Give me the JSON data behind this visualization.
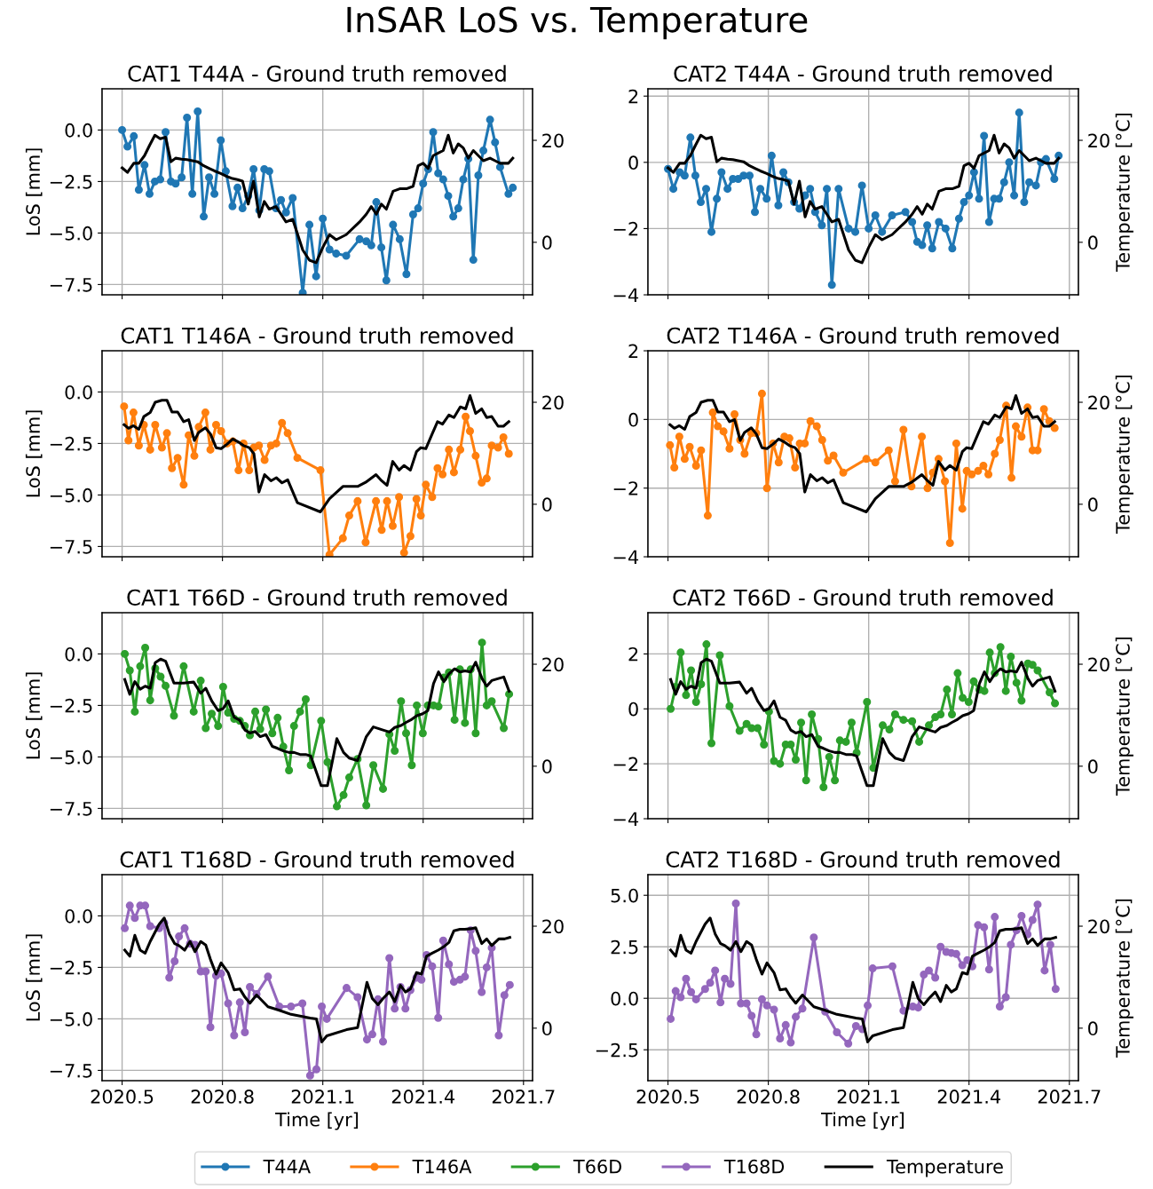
{
  "chart_data": [
    {
      "type": "line",
      "title": "CAT1 T44A - Ground truth removed",
      "annotations": [
        "InSAR LoS vs. Temperature"
      ],
      "ylabel": "LoS [mm]",
      "grid": true,
      "tick_labels": "y",
      "marker": "circle",
      "legend": "bottom",
      "xlim": [
        2020.44,
        2021.727
      ],
      "xticks": [
        2020.5,
        2020.8,
        2021.1,
        2021.4,
        2021.7
      ],
      "ylim": [
        -8.0,
        2.0
      ],
      "yticks": [
        {
          "value": -7.5,
          "label": "−7.5"
        },
        {
          "value": -5,
          "label": "−5.0"
        },
        {
          "value": -2.5,
          "label": "−2.5"
        },
        {
          "value": 0,
          "label": "0.0"
        }
      ],
      "y2lim": [
        -10.3,
        30.1
      ],
      "y2ticks": [
        0,
        20
      ],
      "x": [
        2020.5,
        2020.516,
        2020.535,
        2020.55,
        2020.567,
        2020.582,
        2020.598,
        2020.614,
        2020.63,
        2020.646,
        2020.66,
        2020.678,
        2020.694,
        2020.71,
        2020.726,
        2020.744,
        2020.76,
        2020.776,
        2020.795,
        2020.81,
        2020.83,
        2020.845,
        2020.86,
        2020.877,
        2020.893,
        2020.91,
        2020.925,
        2020.94,
        2020.96,
        2020.975,
        2020.99,
        2021.01,
        2021.04,
        2021.06,
        2021.08,
        2021.1,
        2021.12,
        2021.14,
        2021.17,
        2021.21,
        2021.23,
        2021.245,
        2021.26,
        2021.275,
        2021.29,
        2021.31,
        2021.33,
        2021.35,
        2021.37,
        2021.385,
        2021.4,
        2021.415,
        2021.43,
        2021.445,
        2021.46,
        2021.475,
        2021.49,
        2021.505,
        2021.52,
        2021.535,
        2021.55,
        2021.565,
        2021.58,
        2021.6,
        2021.615,
        2021.63,
        2021.655,
        2021.668
      ],
      "series": [
        {
          "name": "T44A",
          "color": "#1f77b4",
          "values": [
            0.0,
            -0.8,
            -0.3,
            -2.9,
            -1.7,
            -3.1,
            -2.5,
            -2.4,
            -0.1,
            -2.5,
            -2.6,
            -2.3,
            0.6,
            -3.1,
            0.9,
            -4.2,
            -2.3,
            -3.1,
            -0.5,
            -2.0,
            -3.7,
            -2.8,
            -3.8,
            -3.2,
            -1.9,
            -3.9,
            -1.9,
            -2.0,
            -3.8,
            -3.4,
            -4.0,
            -3.3,
            -7.9,
            -4.6,
            -7.1,
            -4.3,
            -5.8,
            -6.0,
            -6.1,
            -5.3,
            -5.4,
            -5.6,
            -3.5,
            -5.7,
            -7.3,
            -4.6,
            -5.3,
            -7.0,
            -4.1,
            -3.8,
            -2.6,
            -1.9,
            -0.1,
            -2.1,
            -2.4,
            -3.2,
            -4.2,
            -3.8,
            -2.4,
            -1.4,
            -6.3,
            -2.2,
            -1.0,
            0.5,
            -0.6,
            -1.8,
            -3.1,
            -2.8
          ]
        },
        {
          "name": "Temperature",
          "color": "#000000",
          "axis": "y2",
          "marker": "none",
          "values": [
            14.6,
            13.7,
            15.5,
            15.5,
            17,
            19,
            21,
            20.3,
            20.6,
            15.8,
            16.5,
            16.3,
            16.2,
            16,
            15.8,
            15,
            14.5,
            14,
            13.5,
            13,
            12.5,
            12.3,
            12,
            7.5,
            12,
            5,
            8,
            6.5,
            7,
            5.5,
            4,
            4.5,
            -1.5,
            -3.5,
            -4,
            -1,
            1.5,
            0.5,
            1.5,
            4,
            5.5,
            7,
            5.5,
            7.5,
            6.5,
            10,
            10.5,
            10.5,
            11,
            15,
            15.5,
            14.5,
            17,
            17.5,
            18,
            21,
            17.5,
            19.3,
            18.5,
            16.5,
            18,
            17,
            16,
            16.5,
            16,
            15.5,
            15.5,
            16.5
          ]
        }
      ]
    },
    {
      "type": "line",
      "title": "CAT2 T44A - Ground truth removed",
      "y2label": "Temperature [°C]",
      "grid": true,
      "tick_labels": "y",
      "marker": "circle",
      "xlim": [
        2020.44,
        2021.727
      ],
      "xticks": [
        2020.5,
        2020.8,
        2021.1,
        2021.4,
        2021.7
      ],
      "ylim": [
        -4.0,
        2.22
      ],
      "yticks": [
        -4,
        -2,
        0,
        2
      ],
      "y2lim": [
        -10.3,
        30.1
      ],
      "y2ticks": [
        0,
        20
      ],
      "x": [
        2020.5,
        2020.516,
        2020.535,
        2020.55,
        2020.567,
        2020.582,
        2020.598,
        2020.614,
        2020.63,
        2020.646,
        2020.66,
        2020.678,
        2020.694,
        2020.71,
        2020.726,
        2020.744,
        2020.76,
        2020.776,
        2020.795,
        2020.81,
        2020.83,
        2020.845,
        2020.86,
        2020.877,
        2020.893,
        2020.91,
        2020.925,
        2020.94,
        2020.96,
        2020.975,
        2020.99,
        2021.01,
        2021.04,
        2021.06,
        2021.08,
        2021.1,
        2021.12,
        2021.14,
        2021.17,
        2021.21,
        2021.23,
        2021.245,
        2021.26,
        2021.275,
        2021.29,
        2021.31,
        2021.33,
        2021.35,
        2021.37,
        2021.385,
        2021.4,
        2021.415,
        2021.43,
        2021.445,
        2021.46,
        2021.475,
        2021.49,
        2021.505,
        2021.52,
        2021.535,
        2021.55,
        2021.565,
        2021.58,
        2021.6,
        2021.615,
        2021.63,
        2021.655,
        2021.668
      ],
      "series": [
        {
          "name": "T44A",
          "color": "#1f77b4",
          "values": [
            -0.2,
            -0.8,
            -0.3,
            -0.4,
            0.75,
            -0.4,
            -1.2,
            -0.8,
            -2.1,
            -1.1,
            -0.3,
            -0.8,
            -0.5,
            -0.5,
            -0.4,
            -0.4,
            -1.5,
            -0.8,
            -1.1,
            0.2,
            -1.3,
            -0.3,
            -0.6,
            -1.2,
            -1.4,
            -1.0,
            -0.8,
            -1.5,
            -1.9,
            -0.8,
            -3.7,
            -0.8,
            -2.0,
            -2.1,
            -0.7,
            -2.0,
            -1.6,
            -2.1,
            -1.6,
            -1.5,
            -1.8,
            -2.4,
            -2.5,
            -1.9,
            -2.6,
            -1.8,
            -2.0,
            -2.6,
            -1.7,
            -1.2,
            -1.0,
            -0.3,
            -1.1,
            0.8,
            -1.8,
            -1.1,
            -1.1,
            -0.6,
            0.0,
            -1.0,
            1.5,
            -1.2,
            -0.6,
            -0.7,
            0.0,
            0.1,
            -0.5,
            0.2
          ]
        },
        {
          "name": "Temperature",
          "color": "#000000",
          "axis": "y2",
          "marker": "none",
          "values": [
            14.6,
            13.7,
            15.5,
            15.5,
            17,
            19,
            21,
            20.3,
            20.6,
            15.8,
            16.5,
            16.3,
            16.2,
            16,
            15.8,
            15,
            14.5,
            14,
            13.5,
            13,
            12.5,
            12.3,
            12,
            7.5,
            12,
            5,
            8,
            6.5,
            7,
            5.5,
            4,
            4.5,
            -1.5,
            -3.5,
            -4,
            -1,
            1.5,
            0.5,
            1.5,
            4,
            5.5,
            7,
            5.5,
            7.5,
            6.5,
            10,
            10.5,
            10.5,
            11,
            15,
            15.5,
            14.5,
            17,
            17.5,
            18,
            21,
            17.5,
            19.3,
            18.5,
            16.5,
            18,
            17,
            16,
            16.5,
            16,
            15.5,
            15.5,
            16.5
          ]
        }
      ]
    },
    {
      "type": "line",
      "title": "CAT1 T146A - Ground truth removed",
      "ylabel": "LoS [mm]",
      "grid": true,
      "tick_labels": "y",
      "marker": "circle",
      "xlim": [
        2020.44,
        2021.727
      ],
      "xticks": [
        2020.5,
        2020.8,
        2021.1,
        2021.4,
        2021.7
      ],
      "ylim": [
        -8.0,
        2.0
      ],
      "yticks": [
        {
          "value": -7.5,
          "label": "−7.5"
        },
        {
          "value": -5,
          "label": "−5.0"
        },
        {
          "value": -2.5,
          "label": "−2.5"
        },
        {
          "value": 0,
          "label": "0.0"
        }
      ],
      "y2lim": [
        -10.3,
        30.1
      ],
      "y2ticks": [
        0,
        20
      ],
      "x": [
        2020.506,
        2020.519,
        2020.534,
        2020.55,
        2020.565,
        2020.584,
        2020.599,
        2020.619,
        2020.634,
        2020.649,
        2020.666,
        2020.684,
        2020.699,
        2020.716,
        2020.729,
        2020.749,
        2020.764,
        2020.781,
        2020.796,
        2020.814,
        2020.831,
        2020.848,
        2020.863,
        2020.88,
        2020.894,
        2020.909,
        2020.926,
        2020.945,
        2020.961,
        2020.978,
        2020.995,
        2021.024,
        2021.093,
        2021.12,
        2021.16,
        2021.179,
        2021.204,
        2021.228,
        2021.259,
        2021.276,
        2021.292,
        2021.309,
        2021.328,
        2021.343,
        2021.362,
        2021.38,
        2021.393,
        2021.408,
        2021.427,
        2021.443,
        2021.458,
        2021.477,
        2021.492,
        2021.511,
        2021.527,
        2021.54,
        2021.557,
        2021.575,
        2021.59,
        2021.605,
        2021.624,
        2021.64,
        2021.656
      ],
      "series": [
        {
          "name": "T146A",
          "color": "#ff7f0e",
          "values": [
            -0.7,
            -2.35,
            -1.0,
            -2.6,
            -1.6,
            -2.8,
            -1.6,
            -2.7,
            -2.0,
            -3.7,
            -3.2,
            -4.5,
            -2.1,
            -3.1,
            -1.7,
            -1.0,
            -2.8,
            -1.6,
            -1.9,
            -2.5,
            -2.4,
            -3.8,
            -2.5,
            -3.8,
            -2.7,
            -2.6,
            -3.3,
            -2.6,
            -2.5,
            -1.5,
            -2.0,
            -3.2,
            -3.8,
            -7.9,
            -7.1,
            -6.0,
            -5.3,
            -7.3,
            -5.3,
            -6.7,
            -5.3,
            -6.5,
            -5.1,
            -7.8,
            -7.0,
            -5.2,
            -6.0,
            -4.5,
            -5.1,
            -3.7,
            -4.0,
            -2.8,
            -3.9,
            -2.8,
            -1.2,
            -1.9,
            -3.1,
            -4.4,
            -4.2,
            -2.6,
            -2.7,
            -2.2,
            -3.0
          ]
        },
        {
          "name": "Temperature",
          "color": "#000000",
          "axis": "y2",
          "marker": "none",
          "values": [
            15.6,
            14.9,
            15.4,
            14.7,
            17.2,
            18,
            20,
            20.4,
            20.4,
            18.1,
            18.1,
            16.2,
            16.6,
            12.5,
            14.1,
            15,
            13.8,
            11.1,
            10.9,
            11.8,
            12.8,
            12.2,
            11.5,
            11.1,
            9.9,
            2.4,
            5.8,
            4.6,
            5.2,
            4.2,
            4.8,
            0.3,
            -1.5,
            1.1,
            3.5,
            3.5,
            3.5,
            4.3,
            5.8,
            4.6,
            3.7,
            8.4,
            6.7,
            7.6,
            6.7,
            10.3,
            11.1,
            10.9,
            13.8,
            16.2,
            15.7,
            17.5,
            17,
            19.1,
            18.7,
            21.3,
            17.8,
            18.7,
            17,
            17.2,
            15.3,
            15.3,
            16.2
          ]
        }
      ]
    },
    {
      "type": "line",
      "title": "CAT2 T146A - Ground truth removed",
      "y2label": "Temperature [°C]",
      "grid": true,
      "tick_labels": "y",
      "marker": "circle",
      "xlim": [
        2020.44,
        2021.727
      ],
      "xticks": [
        2020.5,
        2020.8,
        2021.1,
        2021.4,
        2021.7
      ],
      "ylim": [
        -4.0,
        2.0
      ],
      "yticks": [
        -4,
        -2,
        0,
        2
      ],
      "y2lim": [
        -10.3,
        30.1
      ],
      "y2ticks": [
        0,
        20
      ],
      "x": [
        2020.506,
        2020.519,
        2020.534,
        2020.55,
        2020.565,
        2020.584,
        2020.599,
        2020.619,
        2020.634,
        2020.649,
        2020.666,
        2020.684,
        2020.699,
        2020.716,
        2020.729,
        2020.749,
        2020.764,
        2020.781,
        2020.796,
        2020.814,
        2020.831,
        2020.848,
        2020.863,
        2020.88,
        2020.894,
        2020.909,
        2020.926,
        2020.945,
        2020.961,
        2020.978,
        2020.995,
        2021.024,
        2021.093,
        2021.12,
        2021.16,
        2021.179,
        2021.204,
        2021.228,
        2021.259,
        2021.276,
        2021.292,
        2021.309,
        2021.328,
        2021.343,
        2021.362,
        2021.38,
        2021.393,
        2021.408,
        2021.427,
        2021.443,
        2021.458,
        2021.477,
        2021.492,
        2021.511,
        2021.527,
        2021.54,
        2021.557,
        2021.575,
        2021.59,
        2021.605,
        2021.624,
        2021.64,
        2021.656
      ],
      "series": [
        {
          "name": "T146A",
          "color": "#ff7f0e",
          "values": [
            -0.75,
            -1.4,
            -0.5,
            -1.15,
            -0.8,
            -1.35,
            -0.9,
            -2.8,
            0.2,
            -0.2,
            -0.35,
            -0.85,
            0.15,
            -0.6,
            -1.0,
            -0.4,
            -0.4,
            0.75,
            -2.0,
            -0.7,
            -1.25,
            -0.5,
            -0.55,
            -1.4,
            -0.7,
            -0.7,
            -0.05,
            -0.2,
            -0.6,
            -1.2,
            -1.05,
            -1.55,
            -1.15,
            -1.25,
            -0.9,
            -1.8,
            -0.3,
            -1.95,
            -0.5,
            -2.0,
            -1.55,
            -1.15,
            -1.8,
            -3.6,
            -0.7,
            -2.6,
            -1.5,
            -1.6,
            -1.5,
            -1.35,
            -1.6,
            -1.0,
            -0.6,
            0.4,
            -1.7,
            -0.2,
            -0.5,
            0.35,
            -0.9,
            -0.9,
            0.3,
            -0.05,
            -0.25
          ]
        },
        {
          "name": "Temperature",
          "color": "#000000",
          "axis": "y2",
          "marker": "none",
          "values": [
            15.6,
            14.9,
            15.4,
            14.7,
            17.2,
            18,
            20,
            20.4,
            20.4,
            18.1,
            18.1,
            16.2,
            16.6,
            12.5,
            14.1,
            15,
            13.8,
            11.1,
            10.9,
            11.8,
            12.8,
            12.2,
            11.5,
            11.1,
            9.9,
            2.4,
            5.8,
            4.6,
            5.2,
            4.2,
            4.8,
            0.3,
            -1.5,
            1.1,
            3.5,
            3.5,
            3.5,
            4.3,
            5.8,
            4.6,
            3.7,
            8.4,
            6.7,
            7.6,
            6.7,
            10.3,
            11.1,
            10.9,
            13.8,
            16.2,
            15.7,
            17.5,
            17,
            19.1,
            18.7,
            21.3,
            17.8,
            18.7,
            17,
            17.2,
            15.3,
            15.3,
            16.2
          ]
        }
      ]
    },
    {
      "type": "line",
      "title": "CAT1 T66D - Ground truth removed",
      "ylabel": "LoS [mm]",
      "grid": true,
      "tick_labels": "y",
      "marker": "circle",
      "xlim": [
        2020.44,
        2021.727
      ],
      "xticks": [
        2020.5,
        2020.8,
        2021.1,
        2021.4,
        2021.7
      ],
      "ylim": [
        -8.0,
        2.0
      ],
      "yticks": [
        {
          "value": -7.5,
          "label": "−7.5"
        },
        {
          "value": -5,
          "label": "−5.0"
        },
        {
          "value": -2.5,
          "label": "−2.5"
        },
        {
          "value": 0,
          "label": "0.0"
        }
      ],
      "y2lim": [
        -10.3,
        30.1
      ],
      "y2ticks": [
        0,
        20
      ],
      "x": [
        2020.508,
        2020.523,
        2020.538,
        2020.554,
        2020.569,
        2020.584,
        2020.599,
        2020.615,
        2020.63,
        2020.655,
        2020.684,
        2020.714,
        2020.735,
        2020.75,
        2020.768,
        2020.787,
        2020.802,
        2020.817,
        2020.835,
        2020.852,
        2020.867,
        2020.882,
        2020.898,
        2020.913,
        2020.93,
        2020.949,
        2020.965,
        2020.982,
        2020.999,
        2021.014,
        2021.032,
        2021.049,
        2021.064,
        2021.095,
        2021.114,
        2021.142,
        2021.162,
        2021.179,
        2021.204,
        2021.23,
        2021.251,
        2021.28,
        2021.299,
        2021.315,
        2021.334,
        2021.349,
        2021.366,
        2021.381,
        2021.399,
        2021.414,
        2021.431,
        2021.446,
        2021.462,
        2021.477,
        2021.494,
        2021.51,
        2021.525,
        2021.542,
        2021.557,
        2021.576,
        2021.59,
        2021.605,
        2021.641,
        2021.657
      ],
      "series": [
        {
          "name": "T66D",
          "color": "#2ca02c",
          "values": [
            0.0,
            -0.8,
            -2.8,
            -0.6,
            0.3,
            -2.25,
            -0.7,
            -1.1,
            -1.55,
            -3.0,
            -0.6,
            -2.8,
            -1.3,
            -3.6,
            -2.9,
            -3.5,
            -1.6,
            -2.85,
            -3.15,
            -3.25,
            -3.5,
            -3.95,
            -2.8,
            -3.65,
            -2.7,
            -3.85,
            -3.1,
            -4.5,
            -5.65,
            -3.5,
            -2.8,
            -2.2,
            -5.4,
            -3.25,
            -5.25,
            -7.4,
            -6.85,
            -6.0,
            -5.1,
            -7.35,
            -5.4,
            -6.55,
            -3.9,
            -4.7,
            -2.3,
            -3.85,
            -5.4,
            -2.5,
            -3.85,
            -2.5,
            -2.5,
            -2.55,
            -1.15,
            -0.9,
            -3.2,
            -0.75,
            -3.35,
            -0.75,
            -3.85,
            0.55,
            -2.5,
            -2.3,
            -3.6,
            -1.95
          ]
        },
        {
          "name": "Temperature",
          "color": "#000000",
          "axis": "y2",
          "marker": "none",
          "values": [
            17,
            14.1,
            16.6,
            15.1,
            15.7,
            15.3,
            20.3,
            21,
            20.6,
            16.3,
            16.3,
            16.5,
            14.3,
            15.3,
            12.8,
            10.9,
            11.3,
            12.8,
            9.6,
            9,
            7.1,
            6.5,
            6.8,
            5.8,
            6.2,
            3.9,
            3.5,
            3.0,
            2.7,
            2.7,
            2.3,
            2.3,
            2.0,
            -3.8,
            -3.8,
            5.4,
            2.7,
            1.6,
            1.1,
            5.8,
            7.7,
            7.1,
            6.7,
            7.6,
            8,
            8.6,
            9.2,
            9.9,
            10.3,
            10.9,
            16.2,
            18.5,
            16.6,
            18.1,
            19.1,
            18.5,
            18.7,
            18.5,
            20.4,
            17.2,
            15.7,
            16.8,
            17.5,
            14.7
          ]
        }
      ]
    },
    {
      "type": "line",
      "title": "CAT2 T66D - Ground truth removed",
      "y2label": "Temperature [°C]",
      "grid": true,
      "tick_labels": "y",
      "marker": "circle",
      "xlim": [
        2020.44,
        2021.727
      ],
      "xticks": [
        2020.5,
        2020.8,
        2021.1,
        2021.4,
        2021.7
      ],
      "ylim": [
        -4.0,
        3.5
      ],
      "yticks": [
        -4,
        -2,
        0,
        2
      ],
      "y2lim": [
        -10.3,
        30.1
      ],
      "y2ticks": [
        0,
        20
      ],
      "x": [
        2020.508,
        2020.523,
        2020.538,
        2020.554,
        2020.569,
        2020.584,
        2020.599,
        2020.615,
        2020.63,
        2020.655,
        2020.684,
        2020.714,
        2020.735,
        2020.75,
        2020.768,
        2020.787,
        2020.802,
        2020.817,
        2020.835,
        2020.852,
        2020.867,
        2020.882,
        2020.898,
        2020.913,
        2020.93,
        2020.949,
        2020.965,
        2020.982,
        2020.999,
        2021.014,
        2021.032,
        2021.049,
        2021.064,
        2021.095,
        2021.114,
        2021.142,
        2021.162,
        2021.179,
        2021.204,
        2021.23,
        2021.251,
        2021.28,
        2021.299,
        2021.315,
        2021.334,
        2021.349,
        2021.366,
        2021.381,
        2021.399,
        2021.414,
        2021.431,
        2021.446,
        2021.462,
        2021.477,
        2021.494,
        2021.51,
        2021.525,
        2021.542,
        2021.557,
        2021.576,
        2021.59,
        2021.605,
        2021.641,
        2021.657
      ],
      "series": [
        {
          "name": "T66D",
          "color": "#2ca02c",
          "values": [
            0.0,
            0.8,
            2.05,
            0.5,
            1.4,
            0.25,
            0.9,
            2.35,
            -1.25,
            1.95,
            0.1,
            -0.8,
            -0.55,
            -0.7,
            -0.7,
            -1.3,
            -0.1,
            -1.9,
            -2.0,
            -1.3,
            -1.3,
            -1.85,
            -0.5,
            -2.6,
            -0.2,
            -1.1,
            -2.85,
            -1.75,
            -2.6,
            -1.15,
            -1.2,
            -0.5,
            -1.6,
            0.25,
            -2.15,
            -0.6,
            -0.75,
            -0.2,
            -0.4,
            -0.45,
            -1.2,
            -0.6,
            -0.3,
            -0.2,
            0.7,
            -0.2,
            1.3,
            0.4,
            0.25,
            1.0,
            0.7,
            0.65,
            2.05,
            1.3,
            2.25,
            0.65,
            1.9,
            0.95,
            0.3,
            1.65,
            1.6,
            1.4,
            0.6,
            0.2
          ]
        },
        {
          "name": "Temperature",
          "color": "#000000",
          "axis": "y2",
          "marker": "none",
          "values": [
            17,
            14.1,
            16.6,
            15.1,
            15.7,
            15.3,
            20.3,
            21,
            20.6,
            16.3,
            16.3,
            16.5,
            14.3,
            15.3,
            12.8,
            10.9,
            11.3,
            12.8,
            9.6,
            9,
            7.1,
            6.5,
            6.8,
            5.8,
            6.2,
            3.9,
            3.5,
            3.0,
            2.7,
            2.7,
            2.3,
            2.3,
            2.0,
            -3.8,
            -3.8,
            5.4,
            2.7,
            1.6,
            1.1,
            5.8,
            7.7,
            7.1,
            6.7,
            7.6,
            8,
            8.6,
            9.2,
            9.9,
            10.3,
            10.9,
            16.2,
            18.5,
            16.6,
            18.1,
            19.1,
            18.5,
            18.7,
            18.5,
            20.4,
            17.2,
            15.7,
            16.8,
            17.5,
            14.7
          ]
        }
      ]
    },
    {
      "type": "line",
      "title": "CAT1 T168D - Ground truth removed",
      "ylabel": "LoS [mm]",
      "xlabel": "Time [yr]",
      "grid": true,
      "marker": "circle",
      "xlim": [
        2020.44,
        2021.727
      ],
      "xticks": [
        2020.5,
        2020.8,
        2021.1,
        2021.4,
        2021.7
      ],
      "ylim": [
        -8.0,
        2.0
      ],
      "yticks": [
        {
          "value": -7.5,
          "label": "−7.5"
        },
        {
          "value": -5,
          "label": "−5.0"
        },
        {
          "value": -2.5,
          "label": "−2.5"
        },
        {
          "value": 0,
          "label": "0.0"
        }
      ],
      "y2lim": [
        -10.3,
        30.1
      ],
      "y2ticks": [
        0,
        20
      ],
      "x": [
        2020.508,
        2020.523,
        2020.538,
        2020.554,
        2020.569,
        2020.584,
        2020.611,
        2020.626,
        2020.641,
        2020.657,
        2020.67,
        2020.687,
        2020.703,
        2020.718,
        2020.735,
        2020.75,
        2020.764,
        2020.781,
        2020.796,
        2020.817,
        2020.835,
        2020.852,
        2020.867,
        2020.882,
        2020.902,
        2020.936,
        2020.97,
        2021.005,
        2021.039,
        2021.062,
        2021.081,
        2021.097,
        2021.112,
        2021.171,
        2021.204,
        2021.232,
        2021.248,
        2021.265,
        2021.28,
        2021.299,
        2021.315,
        2021.332,
        2021.347,
        2021.362,
        2021.38,
        2021.395,
        2021.41,
        2021.427,
        2021.445,
        2021.46,
        2021.477,
        2021.492,
        2021.51,
        2021.525,
        2021.542,
        2021.557,
        2021.575,
        2021.59,
        2021.605,
        2021.626,
        2021.643,
        2021.659
      ],
      "series": [
        {
          "name": "T168D",
          "color": "#9467bd",
          "values": [
            -0.6,
            0.5,
            -0.1,
            0.5,
            0.5,
            -0.5,
            -0.6,
            -0.35,
            -3.0,
            -2.2,
            -1.0,
            -0.6,
            -1.35,
            -1.4,
            -2.7,
            -2.7,
            -5.4,
            -2.9,
            -2.8,
            -4.25,
            -5.8,
            -4.2,
            -5.65,
            -3.45,
            -3.8,
            -2.95,
            -4.4,
            -4.4,
            -4.25,
            -7.75,
            -7.45,
            -4.4,
            -5.0,
            -3.5,
            -3.95,
            -6.0,
            -5.75,
            -4.05,
            -6.1,
            -2.05,
            -4.5,
            -3.45,
            -4.5,
            -3.6,
            -3.0,
            -3.1,
            -1.9,
            -2.45,
            -4.95,
            -1.2,
            -2.35,
            -3.2,
            -3.1,
            -2.95,
            -0.7,
            -1.7,
            -3.7,
            -2.5,
            -1.55,
            -5.8,
            -3.85,
            -3.35
          ]
        },
        {
          "name": "Temperature",
          "color": "#000000",
          "axis": "y2",
          "marker": "none",
          "values": [
            15.3,
            14.1,
            18.2,
            15.3,
            14.7,
            17,
            20.4,
            21.6,
            18.5,
            16.6,
            16.2,
            15.3,
            17,
            15,
            17,
            16.3,
            13.5,
            10.6,
            12.8,
            10.9,
            7.5,
            7.7,
            6.1,
            4.9,
            6.5,
            4.2,
            3.5,
            2.7,
            2.3,
            2.0,
            1.8,
            -2.7,
            -1.5,
            -0.3,
            0.1,
            9.0,
            5.8,
            4.6,
            5.8,
            7.1,
            5.2,
            8.4,
            7.1,
            7.7,
            10.9,
            10.6,
            14.1,
            14.7,
            15.3,
            15.9,
            16.8,
            19.1,
            19.4,
            19.4,
            19.5,
            19.7,
            16.6,
            17.5,
            16.2,
            17.5,
            17.5,
            17.8
          ]
        }
      ]
    },
    {
      "type": "line",
      "title": "CAT2 T168D - Ground truth removed",
      "y2label": "Temperature [°C]",
      "xlabel": "Time [yr]",
      "grid": true,
      "marker": "circle",
      "xlim": [
        2020.44,
        2021.727
      ],
      "xticks": [
        2020.5,
        2020.8,
        2021.1,
        2021.4,
        2021.7
      ],
      "ylim": [
        -4.0,
        6.0
      ],
      "yticks": [
        {
          "value": -2.5,
          "label": "−2.5"
        },
        {
          "value": 0,
          "label": "0.0"
        },
        {
          "value": 2.5,
          "label": "2.5"
        },
        {
          "value": 5,
          "label": "5.0"
        }
      ],
      "y2lim": [
        -10.3,
        30.1
      ],
      "y2ticks": [
        0,
        20
      ],
      "x": [
        2020.508,
        2020.523,
        2020.538,
        2020.554,
        2020.569,
        2020.584,
        2020.611,
        2020.626,
        2020.641,
        2020.657,
        2020.67,
        2020.687,
        2020.703,
        2020.718,
        2020.735,
        2020.75,
        2020.764,
        2020.781,
        2020.796,
        2020.817,
        2020.835,
        2020.852,
        2020.867,
        2020.882,
        2020.902,
        2020.936,
        2020.97,
        2021.005,
        2021.039,
        2021.062,
        2021.081,
        2021.097,
        2021.112,
        2021.171,
        2021.204,
        2021.232,
        2021.248,
        2021.265,
        2021.28,
        2021.299,
        2021.315,
        2021.332,
        2021.347,
        2021.362,
        2021.38,
        2021.395,
        2021.41,
        2021.427,
        2021.445,
        2021.46,
        2021.477,
        2021.492,
        2021.51,
        2021.525,
        2021.542,
        2021.557,
        2021.575,
        2021.59,
        2021.605,
        2021.626,
        2021.643,
        2021.659
      ],
      "series": [
        {
          "name": "T168D",
          "color": "#9467bd",
          "values": [
            -1.0,
            0.35,
            0.05,
            0.95,
            0.3,
            -0.05,
            0.45,
            0.75,
            1.35,
            -0.2,
            0.95,
            0.7,
            4.6,
            -0.25,
            -0.25,
            -0.85,
            -1.75,
            -0.05,
            -0.35,
            -0.55,
            -1.95,
            -1.3,
            -2.15,
            -0.9,
            -0.5,
            2.95,
            -0.65,
            -1.65,
            -2.2,
            -1.35,
            -1.5,
            -0.35,
            1.45,
            1.55,
            -0.6,
            -0.4,
            -0.45,
            1.15,
            1.35,
            1.0,
            2.5,
            2.25,
            2.2,
            2.15,
            1.6,
            1.85,
            1.55,
            3.55,
            3.45,
            1.4,
            3.95,
            -0.4,
            0.05,
            2.6,
            3.3,
            4.0,
            3.1,
            3.8,
            4.55,
            1.35,
            2.6,
            0.45
          ]
        },
        {
          "name": "Temperature",
          "color": "#000000",
          "axis": "y2",
          "marker": "none",
          "values": [
            15.3,
            14.1,
            18.2,
            15.3,
            14.7,
            17,
            20.4,
            21.6,
            18.5,
            16.6,
            16.2,
            15.3,
            17,
            15,
            17,
            16.3,
            13.5,
            10.6,
            12.8,
            10.9,
            7.5,
            7.7,
            6.1,
            4.9,
            6.5,
            4.2,
            3.5,
            2.7,
            2.3,
            2.0,
            1.8,
            -2.7,
            -1.5,
            -0.3,
            0.1,
            9.0,
            5.8,
            4.6,
            5.8,
            7.1,
            5.2,
            8.4,
            7.1,
            7.7,
            10.9,
            10.6,
            14.1,
            14.7,
            15.3,
            15.9,
            16.8,
            19.1,
            19.4,
            19.4,
            19.5,
            19.7,
            16.6,
            17.5,
            16.2,
            17.5,
            17.5,
            17.8
          ]
        }
      ]
    }
  ]
}
